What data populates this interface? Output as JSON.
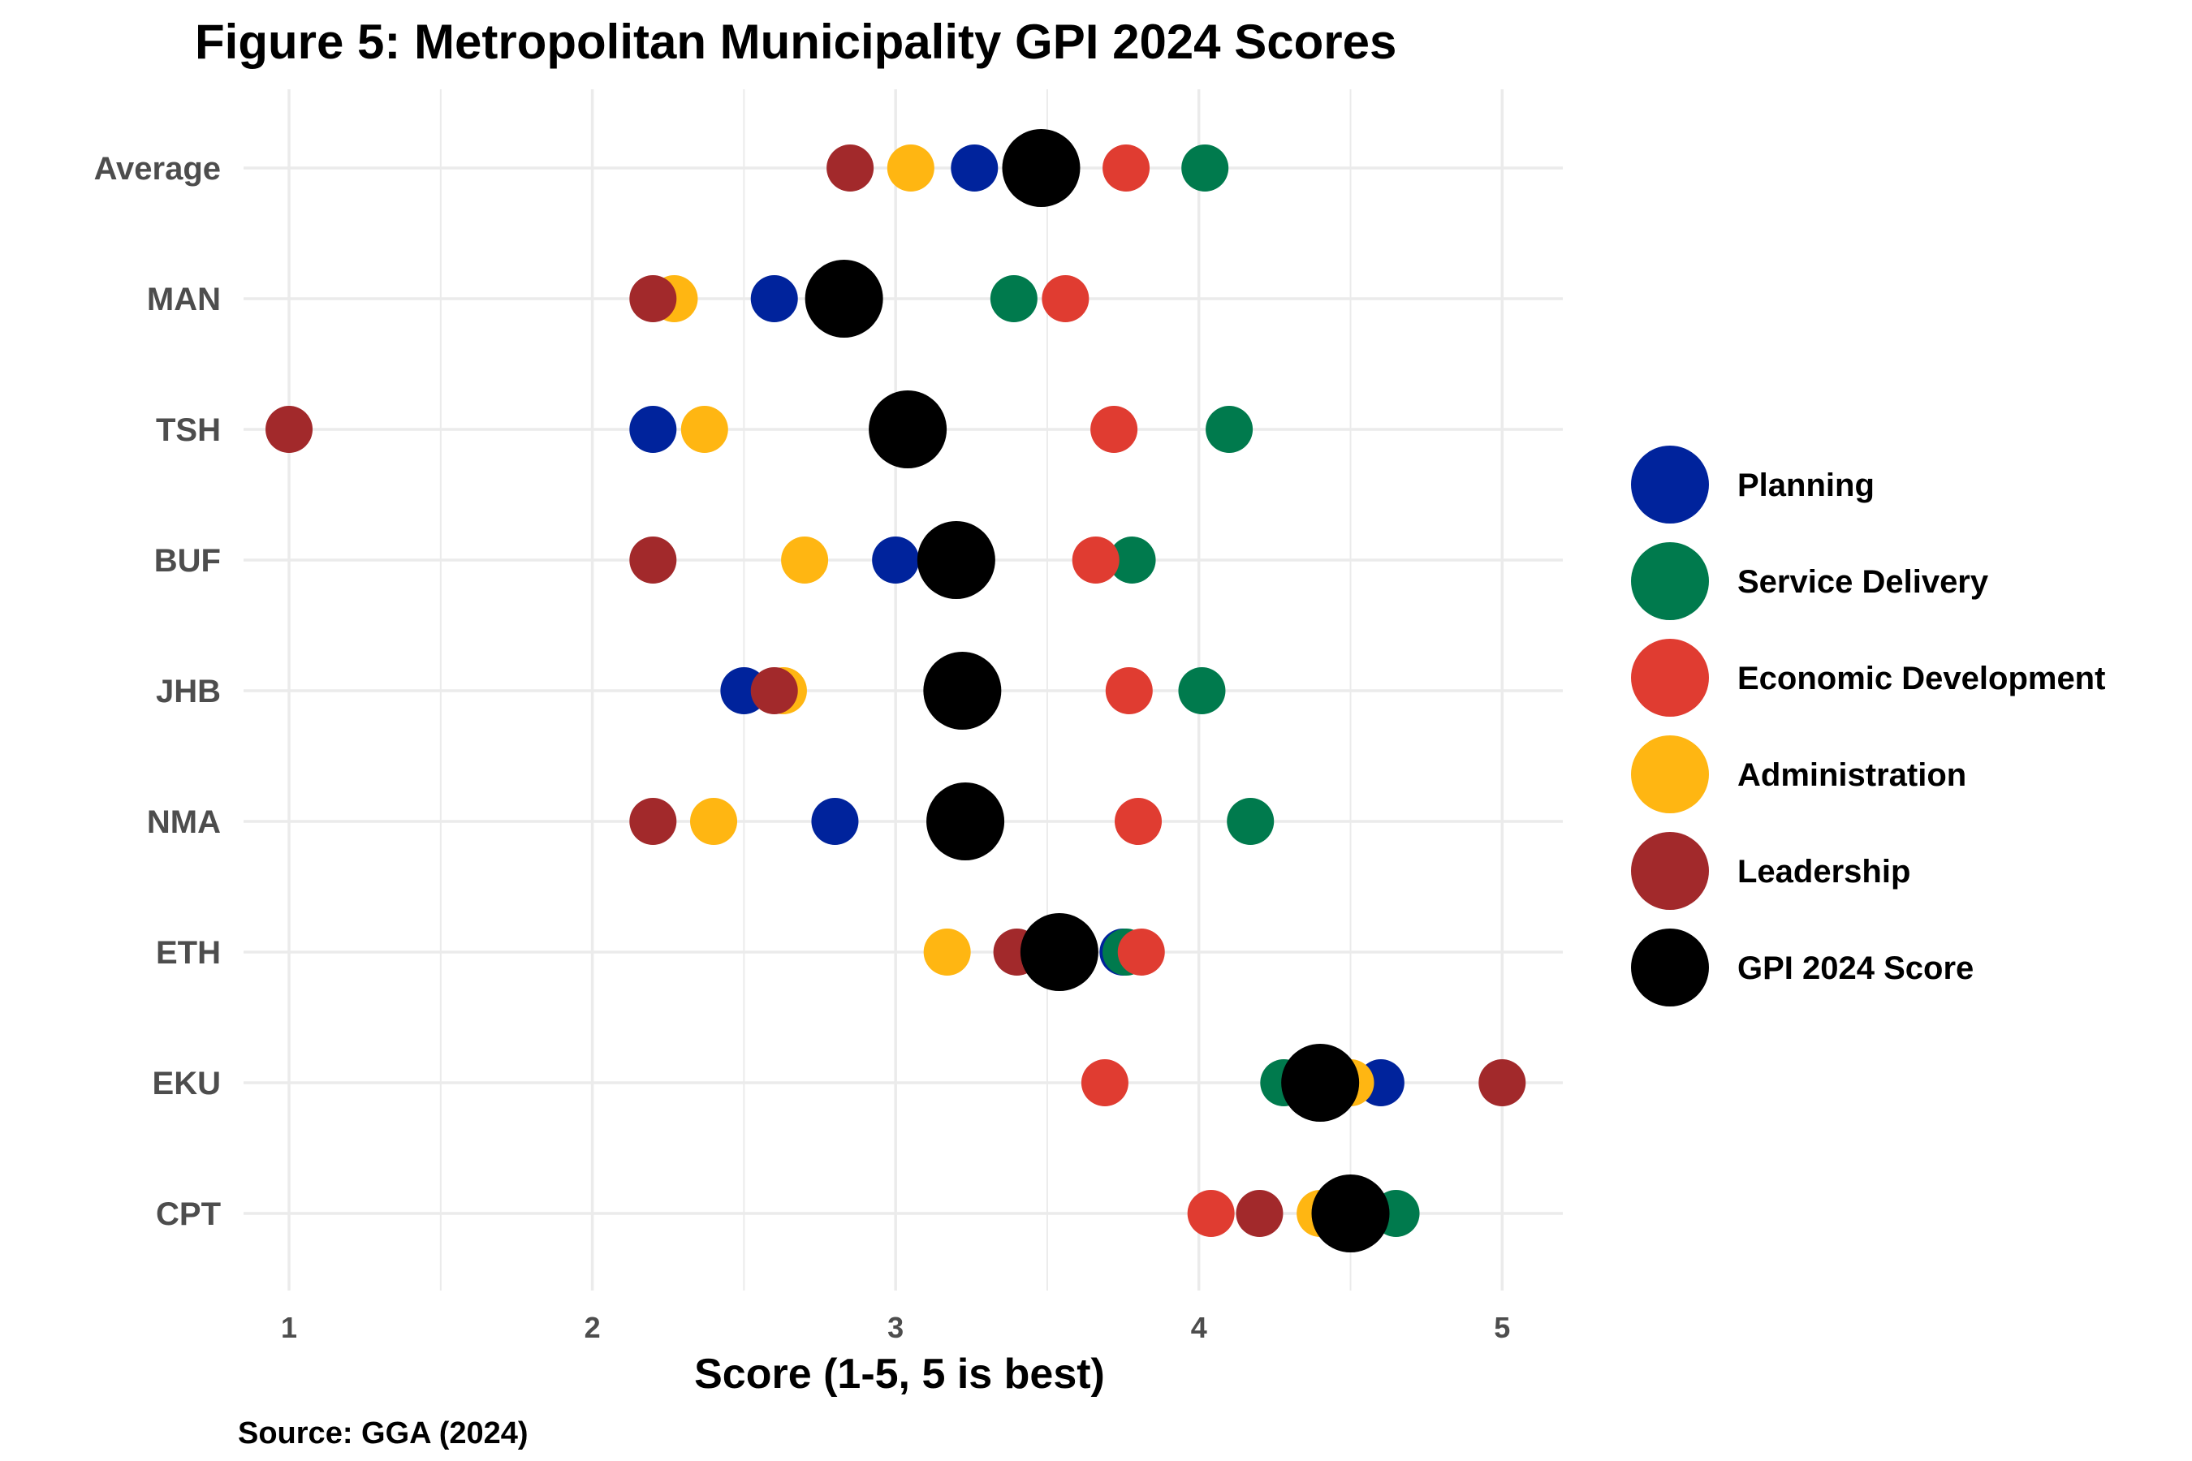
{
  "chart_data": {
    "type": "scatter",
    "title": "Figure 5: Metropolitan Municipality GPI 2024 Scores",
    "xlabel": "Score (1-5, 5 is best)",
    "ylabel": "",
    "caption": "Source: GGA (2024)",
    "xlim": [
      0.85,
      5.2
    ],
    "x_ticks": [
      1,
      2,
      3,
      4,
      5
    ],
    "grid": true,
    "legend_position": "right",
    "categories": [
      "Average",
      "MAN",
      "TSH",
      "BUF",
      "JHB",
      "NMA",
      "ETH",
      "EKU",
      "CPT"
    ],
    "series": [
      {
        "name": "Planning",
        "color": "#00239c",
        "values": [
          3.26,
          2.6,
          2.2,
          3.0,
          2.5,
          2.8,
          3.75,
          4.6,
          4.55
        ]
      },
      {
        "name": "Service Delivery",
        "color": "#007a4d",
        "values": [
          4.02,
          3.39,
          4.1,
          3.78,
          4.01,
          4.17,
          3.76,
          4.28,
          4.65
        ]
      },
      {
        "name": "Economic Development",
        "color": "#e03c31",
        "values": [
          3.76,
          3.56,
          3.72,
          3.66,
          3.77,
          3.8,
          3.81,
          3.69,
          4.04
        ]
      },
      {
        "name": "Administration",
        "color": "#ffb612",
        "values": [
          3.05,
          2.27,
          2.37,
          2.7,
          2.63,
          2.4,
          3.17,
          4.5,
          4.4
        ]
      },
      {
        "name": "Leadership",
        "color": "#a2292b",
        "values": [
          2.85,
          2.2,
          1.0,
          2.2,
          2.6,
          2.2,
          3.4,
          5.0,
          4.2
        ]
      },
      {
        "name": "GPI 2024 Score",
        "color": "#000000",
        "values": [
          3.48,
          2.83,
          3.04,
          3.2,
          3.22,
          3.23,
          3.54,
          4.4,
          4.5
        ]
      }
    ]
  }
}
